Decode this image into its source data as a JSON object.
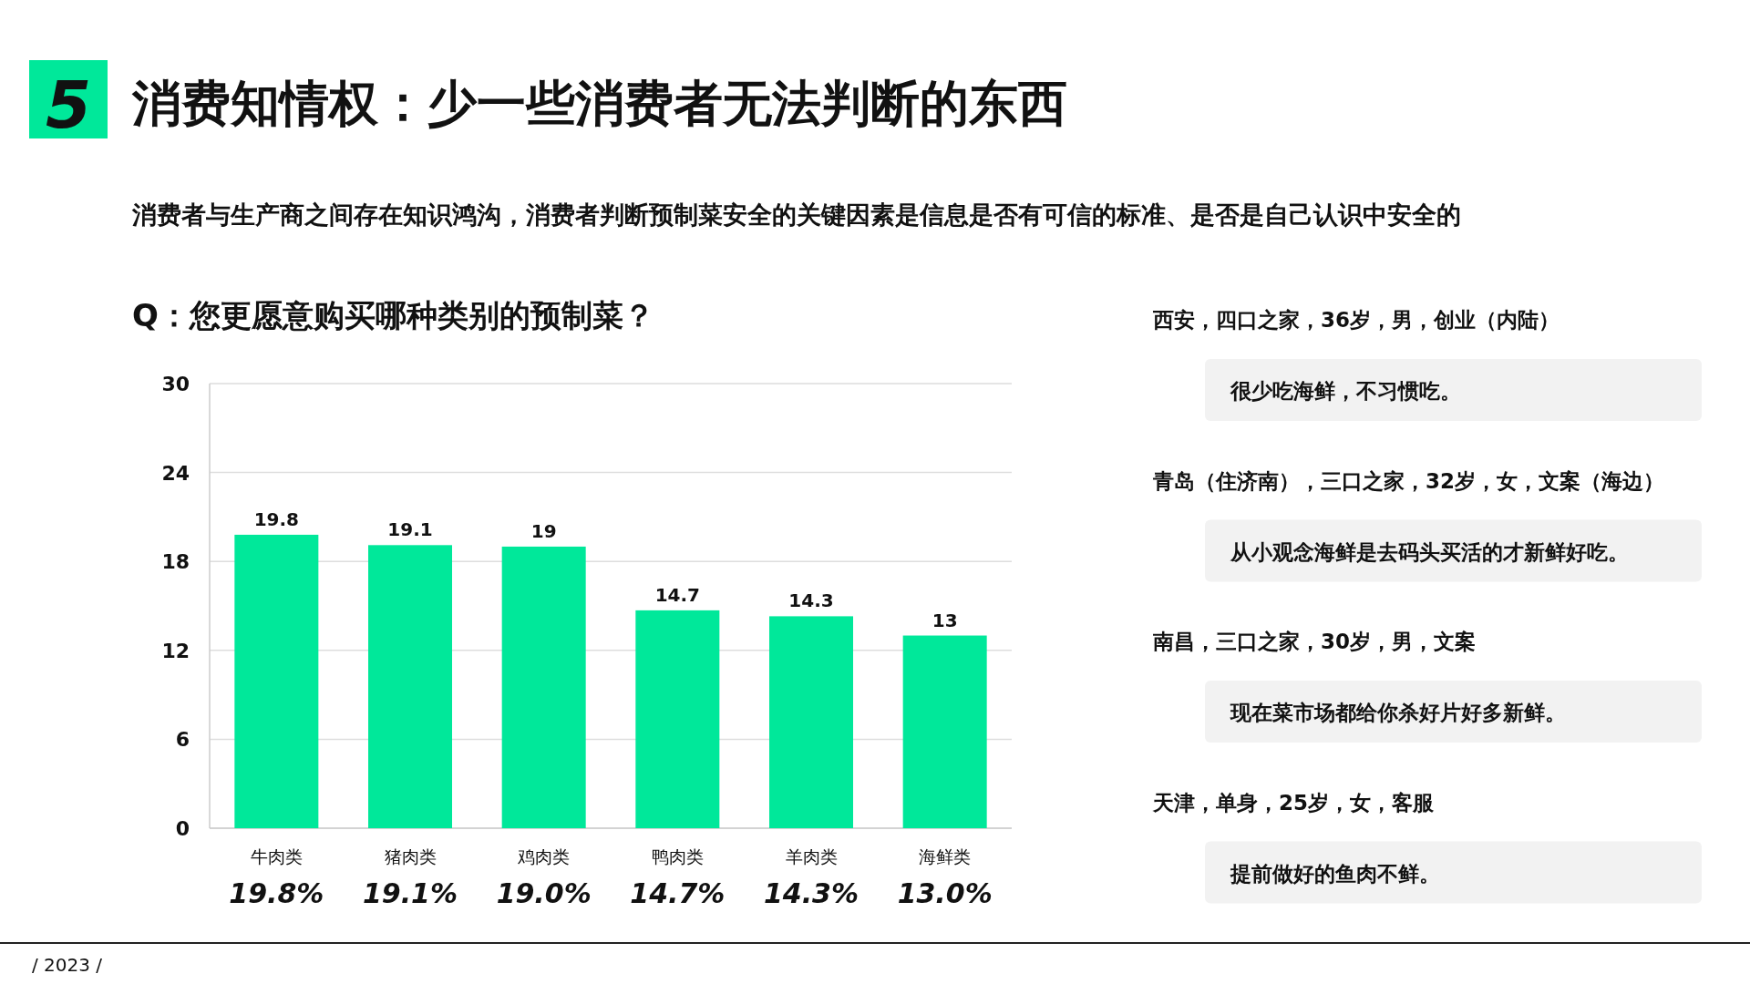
{
  "chart_data": {
    "type": "bar",
    "title": "消费知情权：少一些消费者无法判断的东西",
    "subtitle": "消费者与生产商之间存在知识鸿沟，消费者判断预制菜安全的关键因素是信息是否有可信的标准、是否是自己认识中安全的",
    "categories": [
      "牛肉类",
      "猪肉类",
      "鸡肉类",
      "鸭肉类",
      "羊肉类",
      "海鲜类"
    ],
    "values": [
      19.8,
      19.1,
      19,
      14.7,
      14.3,
      13
    ],
    "color": "#00e89a",
    "data_labels": true,
    "ylim": [
      0,
      30
    ],
    "yticks": [
      0,
      6,
      12,
      18,
      24,
      30
    ],
    "grid": "y",
    "annotations": [
      "5",
      "Q：您更愿意购买哪种类别的预制菜？",
      "西安，四口之家，36岁，男，创业（内陆）",
      "很少吃海鲜，不习惯吃。",
      "青岛（住济南），三口之家，32岁，女，文案（海边）",
      "从小观念海鲜是去码头买活的才新鲜好吃。",
      "南昌，三口之家，30岁，男，文案",
      "现在菜市场都给你杀好片好多新鲜。",
      "天津，单身，25岁，女，客服",
      "提前做好的鱼肉不鲜。",
      "/ 2023 /",
      {
        "text": "19.8%",
        "x": "牛肉类",
        "y": 0
      },
      {
        "text": "19.1%",
        "x": "猪肉类",
        "y": 0
      },
      {
        "text": "19.0%",
        "x": "鸡肉类",
        "y": 0
      },
      {
        "text": "14.7%",
        "x": "鸭肉类",
        "y": 0
      },
      {
        "text": "14.3%",
        "x": "羊肉类",
        "y": 0
      },
      {
        "text": "13.0%",
        "x": "海鲜类",
        "y": 0
      }
    ]
  }
}
